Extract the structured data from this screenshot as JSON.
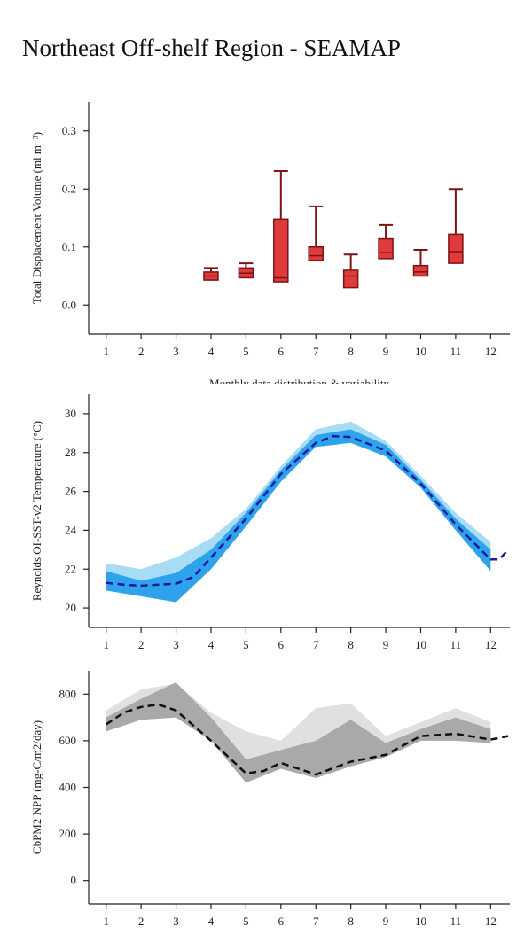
{
  "title": "Northeast Off-shelf Region - SEAMAP",
  "chart_data": [
    {
      "type": "box",
      "ylabel": "Total Displacement Volume (ml m⁻³)",
      "xlabel": "Monthly data distribution & variability",
      "x": [
        1,
        2,
        3,
        4,
        5,
        6,
        7,
        8,
        9,
        10,
        11,
        12
      ],
      "xlim": [
        0.5,
        12.55
      ],
      "xticks": [
        1,
        2,
        3,
        4,
        5,
        6,
        7,
        8,
        9,
        10,
        11,
        12
      ],
      "ylim": [
        -0.05,
        0.35
      ],
      "yticks": [
        {
          "value": 0,
          "label": "0.0"
        },
        0.1,
        0.2,
        0.3
      ],
      "color": "#e03a3a",
      "edge_color": "#7a1418",
      "boxes": [
        null,
        null,
        null,
        {
          "low": 0.043,
          "q1": 0.043,
          "median": 0.05,
          "q3": 0.057,
          "high": 0.064
        },
        {
          "low": 0.047,
          "q1": 0.047,
          "median": 0.055,
          "q3": 0.064,
          "high": 0.072
        },
        {
          "low": 0.04,
          "q1": 0.04,
          "median": 0.047,
          "q3": 0.148,
          "high": 0.231
        },
        {
          "low": 0.077,
          "q1": 0.077,
          "median": 0.085,
          "q3": 0.1,
          "high": 0.17
        },
        {
          "low": 0.03,
          "q1": 0.03,
          "median": 0.05,
          "q3": 0.06,
          "high": 0.087
        },
        {
          "low": 0.08,
          "q1": 0.08,
          "median": 0.09,
          "q3": 0.114,
          "high": 0.138
        },
        {
          "low": 0.05,
          "q1": 0.05,
          "median": 0.057,
          "q3": 0.068,
          "high": 0.095
        },
        {
          "low": 0.072,
          "q1": 0.072,
          "median": 0.092,
          "q3": 0.122,
          "high": 0.2
        },
        null
      ]
    },
    {
      "type": "band",
      "ylabel": "Reynolds OI-SST-v2 Temperature (°C)",
      "x": [
        1,
        2,
        3,
        4,
        5,
        6,
        7,
        8,
        9,
        10,
        11,
        12
      ],
      "xlim": [
        0.5,
        12.55
      ],
      "xticks": [
        1,
        2,
        3,
        4,
        5,
        6,
        7,
        8,
        9,
        10,
        11,
        12
      ],
      "ylim": [
        19,
        31
      ],
      "yticks": [
        20,
        22,
        24,
        26,
        28,
        30
      ],
      "bands": [
        {
          "color": "#a8dcf5",
          "upper": [
            22.3,
            22.0,
            22.6,
            23.6,
            25.1,
            27.3,
            29.2,
            29.6,
            28.6,
            26.8,
            24.9,
            23.4
          ],
          "lower": [
            20.9,
            20.6,
            20.3,
            22.0,
            24.2,
            26.5,
            28.3,
            28.5,
            27.8,
            26.2,
            24.0,
            21.9
          ]
        },
        {
          "color": "#2ea3ec",
          "upper": [
            21.9,
            21.4,
            21.8,
            23.0,
            24.9,
            27.1,
            28.9,
            29.2,
            28.4,
            26.6,
            24.6,
            23.0
          ],
          "lower": [
            20.9,
            20.6,
            20.3,
            22.0,
            24.2,
            26.5,
            28.3,
            28.5,
            27.8,
            26.2,
            24.0,
            21.9
          ]
        }
      ],
      "line": {
        "color": "#1a1aa0",
        "x": [
          1,
          1.5,
          2,
          2.5,
          3,
          3.5,
          4,
          5,
          6,
          7,
          7.5,
          8,
          9,
          10,
          11,
          12,
          12.25,
          12.5
        ],
        "values": [
          21.3,
          21.2,
          21.15,
          21.2,
          21.25,
          21.6,
          22.6,
          24.6,
          26.9,
          28.5,
          28.85,
          28.8,
          28.1,
          26.4,
          24.3,
          22.5,
          22.5,
          23.0
        ]
      }
    },
    {
      "type": "band",
      "ylabel": "CbPM2 NPP (mg-C/m2/day)",
      "x": [
        1,
        2,
        3,
        4,
        5,
        6,
        7,
        8,
        9,
        10,
        11,
        12
      ],
      "xlim": [
        0.5,
        12.55
      ],
      "xticks": [
        1,
        2,
        3,
        4,
        5,
        6,
        7,
        8,
        9,
        10,
        11,
        12
      ],
      "ylim": [
        -100,
        900
      ],
      "yticks": [
        0,
        200,
        400,
        600,
        800
      ],
      "bands": [
        {
          "color": "#e0e0e0",
          "upper": [
            730,
            820,
            845,
            720,
            640,
            600,
            740,
            760,
            620,
            680,
            740,
            680
          ],
          "lower": [
            640,
            690,
            700,
            600,
            420,
            480,
            440,
            490,
            530,
            600,
            600,
            590
          ]
        },
        {
          "color": "#a9a9a9",
          "upper": [
            700,
            780,
            850,
            700,
            520,
            560,
            600,
            690,
            590,
            650,
            700,
            650
          ],
          "lower": [
            640,
            690,
            700,
            600,
            420,
            480,
            440,
            490,
            530,
            600,
            600,
            590
          ]
        }
      ],
      "line": {
        "color": "#111111",
        "x": [
          1,
          1.5,
          2,
          2.5,
          3,
          4,
          5,
          5.5,
          6,
          7,
          8,
          9,
          10,
          11,
          12,
          12.5
        ],
        "values": [
          670,
          720,
          745,
          755,
          730,
          600,
          460,
          470,
          505,
          455,
          510,
          540,
          620,
          630,
          605,
          620
        ]
      }
    }
  ]
}
